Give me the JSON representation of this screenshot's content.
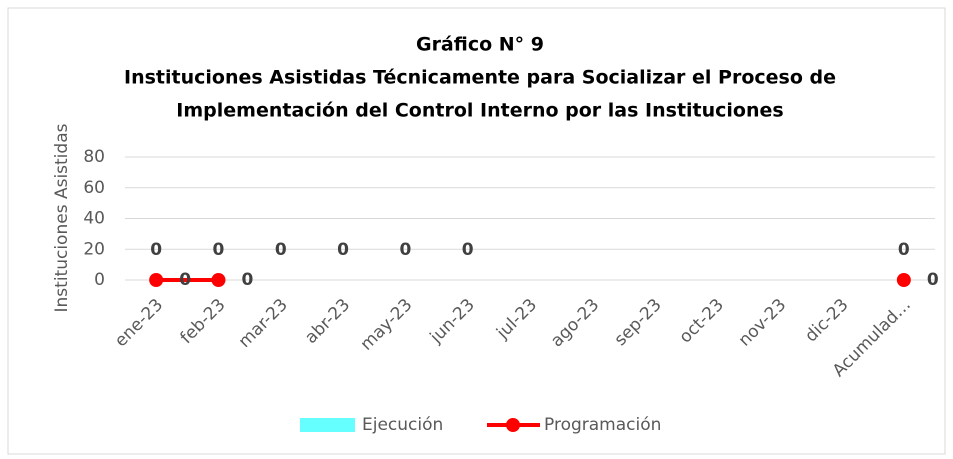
{
  "chart_data": {
    "type": "bar-line",
    "title": "Gráfico N° 9",
    "subtitle": [
      "Instituciones Asistidas Técnicamente para Socializar el Proceso de",
      "Implementación del Control Interno por las Instituciones"
    ],
    "y_label": "Instituciones Asistidas",
    "categories": [
      "ene-23",
      "feb-23",
      "mar-23",
      "abr-23",
      "may-23",
      "jun-23",
      "jul-23",
      "ago-23",
      "sep-23",
      "oct-23",
      "nov-23",
      "dic-23",
      "Acumulad…"
    ],
    "series": [
      {
        "name": "Ejecución",
        "type": "bar",
        "color": "#66ffff",
        "values": [
          0,
          0,
          0,
          0,
          0,
          0,
          null,
          null,
          null,
          null,
          null,
          null,
          0
        ]
      },
      {
        "name": "Programación",
        "type": "line",
        "color": "#ff0000",
        "values": [
          0,
          0,
          null,
          null,
          null,
          null,
          null,
          null,
          null,
          null,
          null,
          null,
          0
        ]
      }
    ],
    "ylim": [
      0,
      80
    ],
    "yticks": [
      0,
      20,
      40,
      60,
      80
    ],
    "grid": true,
    "legend": "bottom"
  }
}
